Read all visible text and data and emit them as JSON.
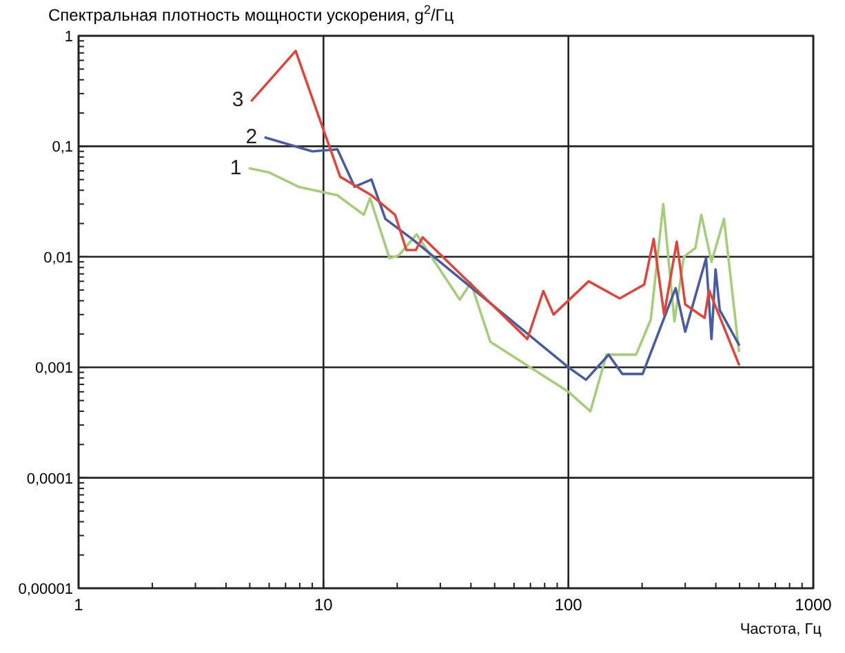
{
  "chart_data": {
    "type": "line",
    "ylabel": "Спектральная плотность мощности ускорения, g$^{2}$/Гц",
    "xlabel": "Частота, Гц",
    "log": "xy",
    "grid": true,
    "line_style": "solid",
    "marker": "none",
    "xlim": [
      1,
      1000
    ],
    "ylim": [
      1e-05,
      1
    ],
    "xticks": [
      1,
      {
        "value": 2,
        "label": null
      },
      {
        "value": 3,
        "label": null
      },
      {
        "value": 4,
        "label": null
      },
      {
        "value": 5,
        "label": null
      },
      {
        "value": 6,
        "label": null
      },
      {
        "value": 7,
        "label": null
      },
      {
        "value": 8,
        "label": null
      },
      {
        "value": 9,
        "label": null
      },
      10,
      {
        "value": 20,
        "label": null
      },
      {
        "value": 30,
        "label": null
      },
      {
        "value": 40,
        "label": null
      },
      {
        "value": 50,
        "label": null
      },
      {
        "value": 60,
        "label": null
      },
      {
        "value": 70,
        "label": null
      },
      {
        "value": 80,
        "label": null
      },
      {
        "value": 90,
        "label": null
      },
      100,
      {
        "value": 200,
        "label": null
      },
      {
        "value": 300,
        "label": null
      },
      {
        "value": 400,
        "label": null
      },
      {
        "value": 500,
        "label": null
      },
      {
        "value": 600,
        "label": null
      },
      {
        "value": 700,
        "label": null
      },
      {
        "value": 800,
        "label": null
      },
      {
        "value": 900,
        "label": null
      },
      1000
    ],
    "yticks": [
      {
        "value": 1e-05,
        "label": "0,00001"
      },
      {
        "value": 2e-05,
        "label": null
      },
      {
        "value": 3e-05,
        "label": null
      },
      {
        "value": 4e-05,
        "label": null
      },
      {
        "value": 5e-05,
        "label": null
      },
      {
        "value": 6e-05,
        "label": null
      },
      {
        "value": 7e-05,
        "label": null
      },
      {
        "value": 8e-05,
        "label": null
      },
      {
        "value": 9e-05,
        "label": null
      },
      {
        "value": 0.0001,
        "label": "0,0001"
      },
      {
        "value": 0.0002,
        "label": null
      },
      {
        "value": 0.0003,
        "label": null
      },
      {
        "value": 0.0004,
        "label": null
      },
      {
        "value": 0.0005,
        "label": null
      },
      {
        "value": 0.0006,
        "label": null
      },
      {
        "value": 0.0007,
        "label": null
      },
      {
        "value": 0.0008,
        "label": null
      },
      {
        "value": 0.0009,
        "label": null
      },
      {
        "value": 0.001,
        "label": "0,001"
      },
      {
        "value": 0.002,
        "label": null
      },
      {
        "value": 0.003,
        "label": null
      },
      {
        "value": 0.004,
        "label": null
      },
      {
        "value": 0.005,
        "label": null
      },
      {
        "value": 0.006,
        "label": null
      },
      {
        "value": 0.007,
        "label": null
      },
      {
        "value": 0.008,
        "label": null
      },
      {
        "value": 0.009,
        "label": null
      },
      {
        "value": 0.01,
        "label": "0,01"
      },
      {
        "value": 0.02,
        "label": null
      },
      {
        "value": 0.03,
        "label": null
      },
      {
        "value": 0.04,
        "label": null
      },
      {
        "value": 0.05,
        "label": null
      },
      {
        "value": 0.06,
        "label": null
      },
      {
        "value": 0.07,
        "label": null
      },
      {
        "value": 0.08,
        "label": null
      },
      {
        "value": 0.09,
        "label": null
      },
      {
        "value": 0.1,
        "label": "0,1"
      },
      {
        "value": 0.2,
        "label": null
      },
      {
        "value": 0.3,
        "label": null
      },
      {
        "value": 0.4,
        "label": null
      },
      {
        "value": 0.5,
        "label": null
      },
      {
        "value": 0.6,
        "label": null
      },
      {
        "value": 0.7,
        "label": null
      },
      {
        "value": 0.8,
        "label": null
      },
      {
        "value": 0.9,
        "label": null
      },
      {
        "value": 1,
        "label": "1"
      }
    ],
    "series": [
      {
        "name": "1",
        "color": "#a6cc7e",
        "x": [
          5,
          6,
          7.9,
          11.4,
          14.6,
          15.5,
          18.6,
          20.3,
          24,
          36,
          40,
          48,
          100,
          123,
          143,
          189,
          217,
          244,
          271,
          296,
          330,
          349,
          384,
          432,
          497
        ],
        "values": [
          0.063,
          0.058,
          0.043,
          0.036,
          0.024,
          0.034,
          0.0097,
          0.0103,
          0.016,
          0.0041,
          0.0058,
          0.0017,
          0.0006,
          0.0004,
          0.0013,
          0.0013,
          0.0027,
          0.03,
          0.0026,
          0.01,
          0.012,
          0.024,
          0.009,
          0.022,
          0.0014
        ]
      },
      {
        "name": "2",
        "color": "#4a5c9c",
        "x": [
          5.8,
          9,
          11.4,
          13.4,
          15.7,
          17.9,
          23,
          100,
          118,
          146,
          166,
          201,
          274,
          300,
          365,
          384,
          399,
          415,
          497
        ],
        "values": [
          0.12,
          0.09,
          0.094,
          0.043,
          0.05,
          0.022,
          0.0145,
          0.001,
          0.00077,
          0.0013,
          0.00087,
          0.00087,
          0.0052,
          0.0021,
          0.0097,
          0.0018,
          0.0077,
          0.0033,
          0.0016
        ]
      },
      {
        "name": "3",
        "color": "#d9483f",
        "x": [
          5.1,
          7.7,
          9.7,
          11.7,
          15.7,
          19.6,
          21.8,
          23.8,
          25.4,
          68,
          79,
          87,
          121,
          162,
          204,
          223,
          246,
          277,
          300,
          360,
          375,
          497
        ],
        "values": [
          0.26,
          0.73,
          0.17,
          0.053,
          0.036,
          0.024,
          0.0115,
          0.0115,
          0.015,
          0.0018,
          0.0049,
          0.003,
          0.006,
          0.0042,
          0.0056,
          0.0145,
          0.003,
          0.0137,
          0.0037,
          0.0028,
          0.005,
          0.00106
        ]
      }
    ]
  }
}
